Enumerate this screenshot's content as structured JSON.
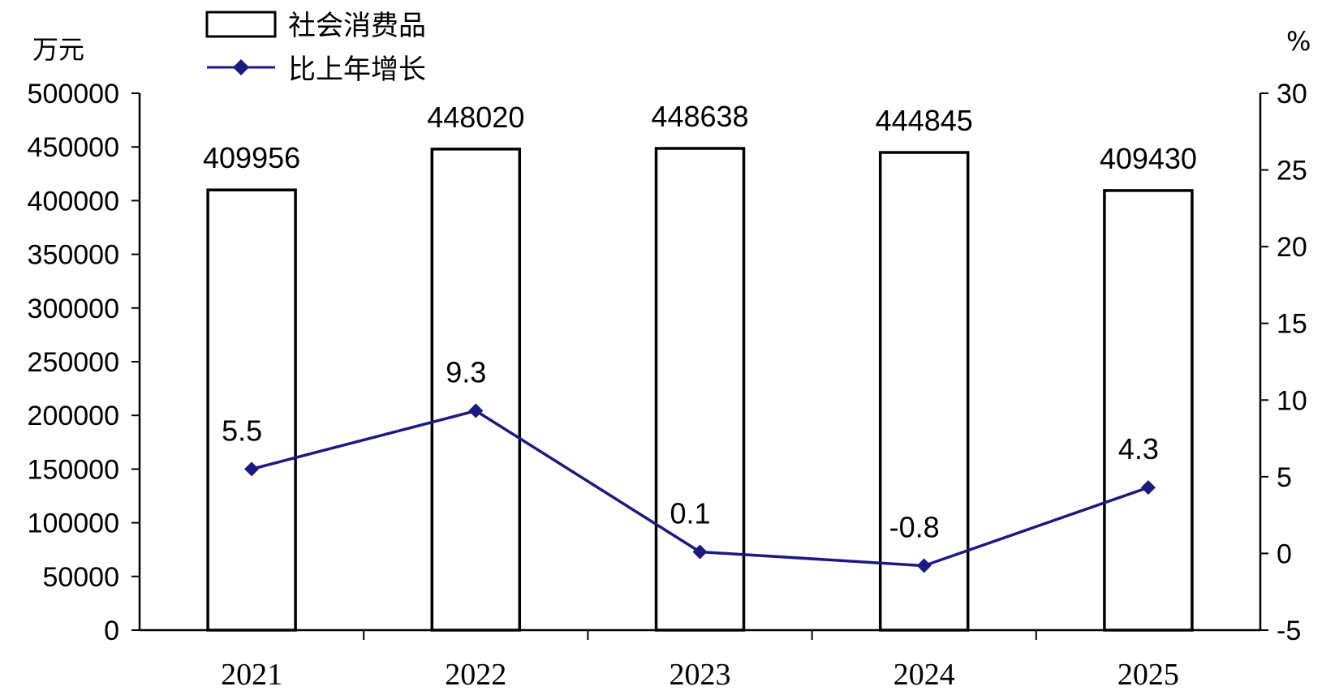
{
  "chart_data": {
    "type": "bar",
    "categories": [
      "2021",
      "2022",
      "2023",
      "2024",
      "2025"
    ],
    "series": [
      {
        "name": "社会消费品",
        "type": "bar",
        "axis": "left",
        "values": [
          409956,
          448020,
          448638,
          444845,
          409430
        ],
        "labels": [
          "409956",
          "448020",
          "448638",
          "444845",
          "409430"
        ]
      },
      {
        "name": "比上年增长",
        "type": "line",
        "axis": "right",
        "values": [
          5.5,
          9.3,
          0.1,
          -0.8,
          4.3
        ],
        "labels": [
          "5.5",
          "9.3",
          "0.1",
          "-0.8",
          "4.3"
        ]
      }
    ],
    "y_left": {
      "unit": "万元",
      "ylim": [
        0,
        500000
      ],
      "ticks": [
        "0",
        "50000",
        "100000",
        "150000",
        "200000",
        "250000",
        "300000",
        "350000",
        "400000",
        "450000",
        "500000"
      ]
    },
    "y_right": {
      "unit": "%",
      "ylim": [
        -5,
        30
      ],
      "ticks": [
        "-5",
        "0",
        "5",
        "10",
        "15",
        "20",
        "25",
        "30"
      ]
    },
    "legend_position": "top-left",
    "grid": false,
    "colors": {
      "bar_fill": "#ffffff",
      "bar_stroke": "#000000",
      "line": "#1a1a80",
      "axis": "#000000"
    }
  }
}
